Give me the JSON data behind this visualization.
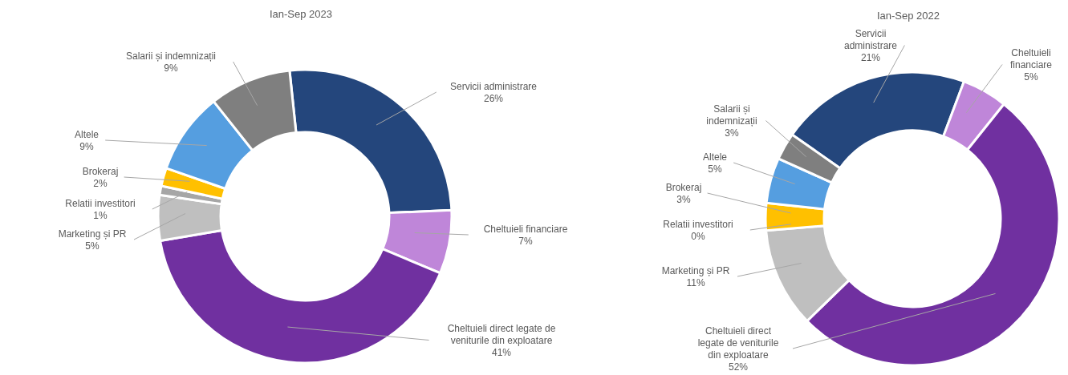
{
  "chart_data": [
    {
      "type": "donut",
      "title": "Ian-Sep 2023",
      "categories": [
        "Servicii administrare",
        "Cheltuieli financiare",
        "Cheltuieli direct legate de veniturile din exploatare",
        "Marketing și PR",
        "Relatii investitori",
        "Brokeraj",
        "Altele",
        "Salarii și indemnizații"
      ],
      "values": [
        26,
        7,
        41,
        5,
        1,
        2,
        9,
        9
      ],
      "colors": [
        "#24467c",
        "#bf86d9",
        "#7030a0",
        "#bfbfbf",
        "#a6a6a6",
        "#ffc000",
        "#559ee0",
        "#7f7f7f"
      ],
      "value_labels": [
        "26%",
        "7%",
        "41%",
        "5%",
        "1%",
        "2%",
        "9%",
        "9%"
      ]
    },
    {
      "type": "donut",
      "title": "Ian-Sep 2022",
      "categories": [
        "Servicii administrare",
        "Cheltuieli financiare",
        "Cheltuieli direct legate de veniturile din exploatare",
        "Marketing și PR",
        "Relatii investitori",
        "Brokeraj",
        "Altele",
        "Salarii și indemnizații"
      ],
      "values": [
        21,
        5,
        52,
        11,
        0,
        3,
        5,
        3
      ],
      "colors": [
        "#24467c",
        "#bf86d9",
        "#7030a0",
        "#bfbfbf",
        "#a6a6a6",
        "#ffc000",
        "#559ee0",
        "#7f7f7f"
      ],
      "value_labels": [
        "21%",
        "5%",
        "52%",
        "11%",
        "0%",
        "3%",
        "5%",
        "3%"
      ]
    }
  ]
}
